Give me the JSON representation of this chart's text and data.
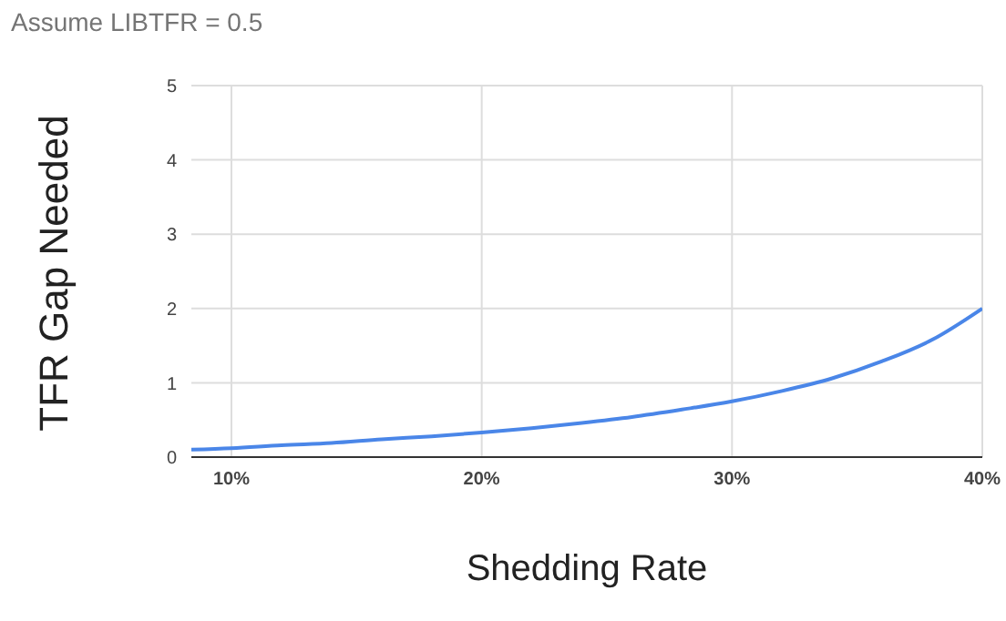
{
  "chart_data": {
    "type": "line",
    "subtitle": "Assume LIBTFR = 0.5",
    "xlabel": "Shedding Rate",
    "ylabel": "TFR Gap Needed",
    "x": [
      8.4,
      10,
      12,
      14,
      16,
      18,
      20,
      22,
      24,
      26,
      28,
      30,
      32,
      34,
      36,
      38,
      40
    ],
    "series": [
      {
        "color": "#4a86e8",
        "values": [
          0.1,
          0.12,
          0.16,
          0.19,
          0.24,
          0.28,
          0.33,
          0.39,
          0.46,
          0.54,
          0.64,
          0.75,
          0.89,
          1.06,
          1.29,
          1.58,
          2
        ]
      }
    ],
    "xlim": [
      8.4,
      40
    ],
    "xticks": [
      {
        "value": 10,
        "label": "10%"
      },
      {
        "value": 20,
        "label": "20%"
      },
      {
        "value": 30,
        "label": "30%"
      },
      {
        "value": 40,
        "label": "40%"
      }
    ],
    "ylim": [
      0,
      5
    ],
    "yticks": [
      0,
      1,
      2,
      3,
      4,
      5
    ],
    "grid": true,
    "legend": false,
    "marker": "none",
    "line_style": "solid"
  }
}
